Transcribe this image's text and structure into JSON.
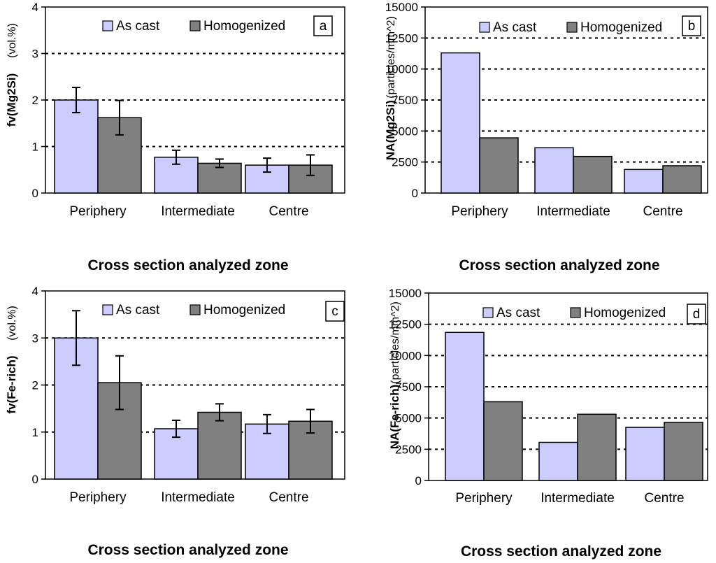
{
  "chart_data": [
    {
      "panel": "a",
      "type": "bar",
      "ylabel": "fv(Mg2Si)",
      "yunit": "(vol.%)",
      "xlabel": "Cross section analyzed zone",
      "categories": [
        "Periphery",
        "Intermediate",
        "Centre"
      ],
      "ylim": [
        0,
        4
      ],
      "yticks": [
        0,
        1,
        2,
        3,
        4
      ],
      "series": [
        {
          "name": "As cast",
          "values": [
            2.0,
            0.77,
            0.6
          ],
          "errors": [
            0.27,
            0.15,
            0.15
          ]
        },
        {
          "name": "Homogenized",
          "values": [
            1.62,
            0.64,
            0.6
          ],
          "errors": [
            0.37,
            0.09,
            0.22
          ]
        }
      ],
      "gridlines": [
        1,
        2,
        3
      ],
      "legend": "top"
    },
    {
      "panel": "b",
      "type": "bar",
      "ylabel": "NA(Mg2Si)",
      "yunit": "(particles/mm^2)",
      "xlabel": "Cross section analyzed zone",
      "categories": [
        "Periphery",
        "Intermediate",
        "Centre"
      ],
      "ylim": [
        0,
        15000
      ],
      "yticks": [
        0,
        2500,
        5000,
        7500,
        10000,
        12500,
        15000
      ],
      "series": [
        {
          "name": "As cast",
          "values": [
            11300,
            3650,
            1900
          ]
        },
        {
          "name": "Homogenized",
          "values": [
            4450,
            2950,
            2200
          ]
        }
      ],
      "gridlines": [
        2500,
        5000,
        7500,
        10000,
        12500
      ],
      "legend": "top"
    },
    {
      "panel": "c",
      "type": "bar",
      "ylabel": "fv(Fe-rich)",
      "yunit": "(vol.%)",
      "xlabel": "Cross section analyzed zone",
      "categories": [
        "Periphery",
        "Intermediate",
        "Centre"
      ],
      "ylim": [
        0,
        4
      ],
      "yticks": [
        0,
        1,
        2,
        3,
        4
      ],
      "series": [
        {
          "name": "As cast",
          "values": [
            3.0,
            1.07,
            1.17
          ],
          "errors": [
            0.58,
            0.18,
            0.2
          ]
        },
        {
          "name": "Homogenized",
          "values": [
            2.05,
            1.42,
            1.23
          ],
          "errors": [
            0.57,
            0.18,
            0.25
          ]
        }
      ],
      "gridlines": [
        1,
        2,
        3
      ],
      "legend": "top"
    },
    {
      "panel": "d",
      "type": "bar",
      "ylabel": "NA(Fe-rich)",
      "yunit": "(particles/mm^2)",
      "xlabel": "Cross section analyzed zone",
      "categories": [
        "Periphery",
        "Intermediate",
        "Centre"
      ],
      "ylim": [
        0,
        15000
      ],
      "yticks": [
        0,
        2500,
        5000,
        7500,
        10000,
        12500,
        15000
      ],
      "series": [
        {
          "name": "As cast",
          "values": [
            11850,
            3050,
            4250
          ]
        },
        {
          "name": "Homogenized",
          "values": [
            6300,
            5300,
            4650
          ]
        }
      ],
      "gridlines": [
        2500,
        5000,
        7500,
        10000,
        12500
      ],
      "legend": "top"
    }
  ],
  "colors": {
    "as_cast": "#ccccff",
    "homogenized": "#808080",
    "stroke": "#000000",
    "grid": "#000000"
  }
}
